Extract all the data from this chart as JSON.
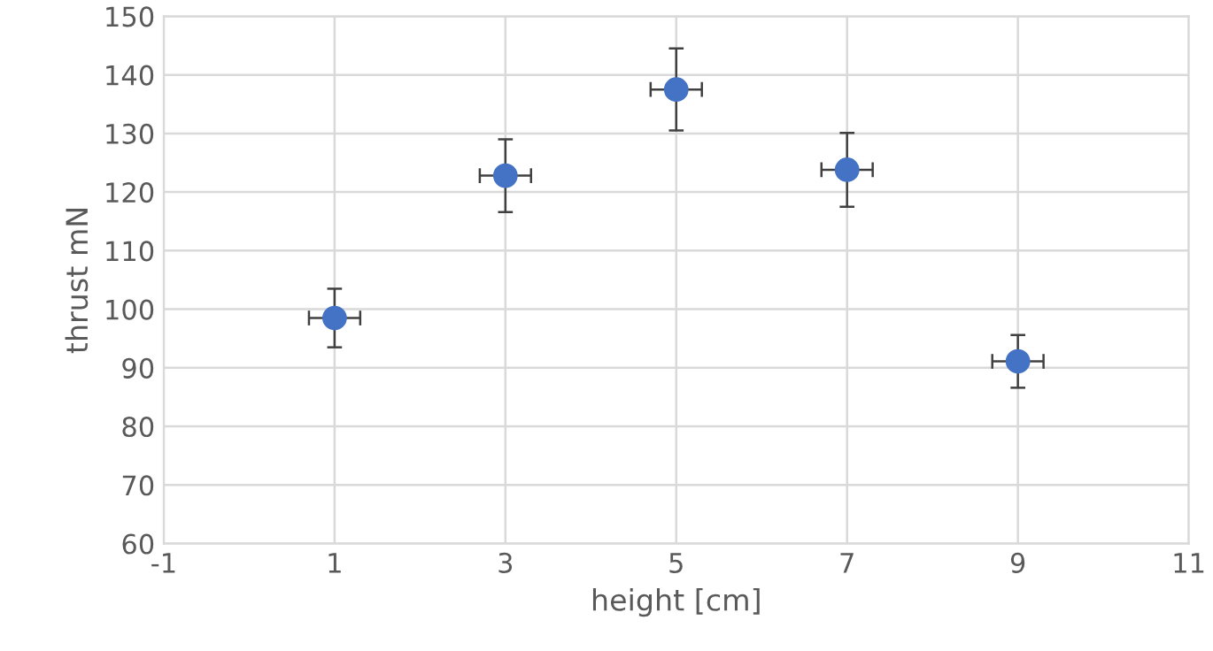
{
  "chart_data": {
    "type": "scatter",
    "xlabel": "height [cm]",
    "ylabel": "thrust mN",
    "x": [
      1,
      3,
      5,
      7,
      9
    ],
    "series": [
      {
        "color": "#4472c4",
        "values": [
          98.5,
          122.8,
          137.5,
          123.8,
          91.1
        ],
        "errors": [
          5,
          6.2,
          7,
          6.3,
          4.5
        ],
        "xerrors": [
          0.3,
          0.3,
          0.3,
          0.3,
          0.3
        ]
      }
    ],
    "xlim": [
      -1,
      11
    ],
    "xticks": [
      -1,
      1,
      3,
      5,
      7,
      9,
      11
    ],
    "ylim": [
      60,
      150
    ],
    "yticks": [
      60,
      70,
      80,
      90,
      100,
      110,
      120,
      130,
      140,
      150
    ],
    "grid": true,
    "marker": "circle"
  }
}
